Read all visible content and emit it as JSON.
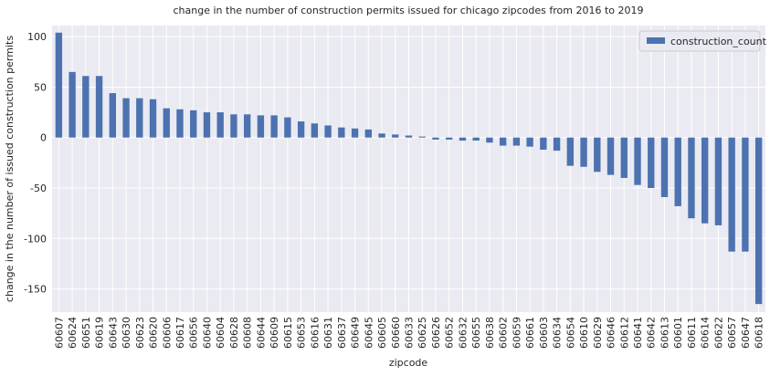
{
  "chart_data": {
    "type": "bar",
    "title": "change in the number of construction permits issued for chicago zipcodes from 2016 to 2019",
    "x_label": "zipcode",
    "y_label": "change in the number of issued construction permits",
    "categories": [
      "60607",
      "60624",
      "60651",
      "60619",
      "60643",
      "60630",
      "60623",
      "60620",
      "60606",
      "60617",
      "60656",
      "60640",
      "60604",
      "60628",
      "60608",
      "60644",
      "60609",
      "60615",
      "60653",
      "60616",
      "60631",
      "60637",
      "60649",
      "60645",
      "60605",
      "60660",
      "60633",
      "60625",
      "60626",
      "60652",
      "60632",
      "60655",
      "60638",
      "60602",
      "60659",
      "60661",
      "60603",
      "60634",
      "60654",
      "60610",
      "60629",
      "60646",
      "60612",
      "60641",
      "60642",
      "60613",
      "60601",
      "60611",
      "60614",
      "60622",
      "60657",
      "60647",
      "60618"
    ],
    "series": [
      {
        "name": "construction_count",
        "color": "#4c72b0",
        "values": [
          104,
          65,
          61,
          61,
          44,
          39,
          39,
          38,
          29,
          28,
          27,
          25,
          25,
          23,
          23,
          22,
          22,
          20,
          16,
          14,
          12,
          10,
          9,
          8,
          4,
          3,
          2,
          1,
          -2,
          -2,
          -3,
          -3,
          -5,
          -8,
          -8,
          -9,
          -12,
          -13,
          -28,
          -29,
          -34,
          -37,
          -40,
          -47,
          -50,
          -59,
          -68,
          -80,
          -85,
          -87,
          -113,
          -113,
          -165
        ]
      }
    ],
    "ylim": [
      -173,
      111
    ],
    "yticks": [
      -150,
      -100,
      -50,
      0,
      50,
      100
    ],
    "grid": true,
    "legend": "upper right",
    "background": "#eaeaf2"
  }
}
